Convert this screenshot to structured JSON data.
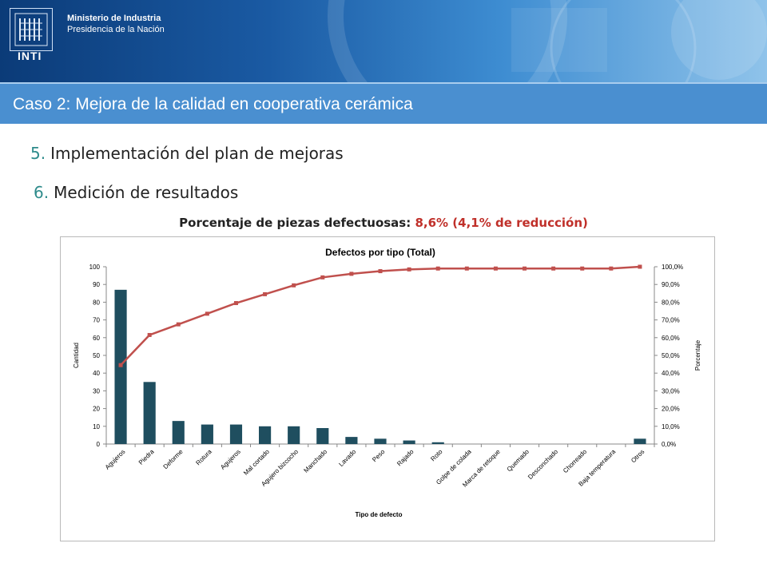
{
  "header": {
    "logo_text": "INTI",
    "ministry_line1": "Ministerio de Industria",
    "ministry_line2": "Presidencia de la Nación"
  },
  "title_bar": {
    "title": "Caso 2: Mejora de la calidad en cooperativa cerámica"
  },
  "steps": [
    {
      "number": "5.",
      "label": "Implementación del plan de mejoras"
    },
    {
      "number": "6.",
      "label": "Medición de resultados"
    }
  ],
  "subtitle": {
    "prefix": "Porcentaje de piezas defectuosas:",
    "highlight": "8,6% (4,1% de reducción)"
  },
  "colors": {
    "bar": "#1f4e5f",
    "line": "#c0504d",
    "title_bar": "#4a8fd0",
    "step_number": "#2e8b8b",
    "highlight": "#c0302a"
  },
  "chart_data": {
    "type": "bar",
    "title": "Defectos por tipo (Total)",
    "xlabel": "Tipo de defecto",
    "ylabel": "Cantidad",
    "y2label": "Porcentaje",
    "ylim": [
      0,
      100
    ],
    "y2lim": [
      0,
      100
    ],
    "yticks": [
      "0",
      "10",
      "20",
      "30",
      "40",
      "50",
      "60",
      "70",
      "80",
      "90",
      "100"
    ],
    "y2ticks": [
      "0,0%",
      "10,0%",
      "20,0%",
      "30,0%",
      "40,0%",
      "50,0%",
      "60,0%",
      "70,0%",
      "80,0%",
      "90,0%",
      "100,0%"
    ],
    "categories": [
      "Agujeros",
      "Piedra",
      "Deforme",
      "Rotura",
      "Agujeros",
      "Mal cortado",
      "Agujero bizcocho",
      "Manchado",
      "Lavado",
      "Peso",
      "Rajado",
      "Roto",
      "Golpe de colada",
      "Marca de retoque",
      "Quemado",
      "Desconchado",
      "Chorreado",
      "Baja temperatura",
      "Otros"
    ],
    "series": [
      {
        "axis": "left",
        "type": "bar",
        "values": [
          87,
          35,
          13,
          11,
          11,
          10,
          10,
          9,
          4,
          3,
          2,
          1,
          0,
          0,
          0,
          0,
          0,
          0,
          3
        ]
      },
      {
        "axis": "right",
        "type": "line",
        "values": [
          44.5,
          61.5,
          67.5,
          73.5,
          79.5,
          84.5,
          89.5,
          94,
          96,
          97.5,
          98.5,
          99,
          99,
          99,
          99,
          99,
          99,
          99,
          100
        ]
      }
    ],
    "grid": false,
    "legend": "none"
  }
}
